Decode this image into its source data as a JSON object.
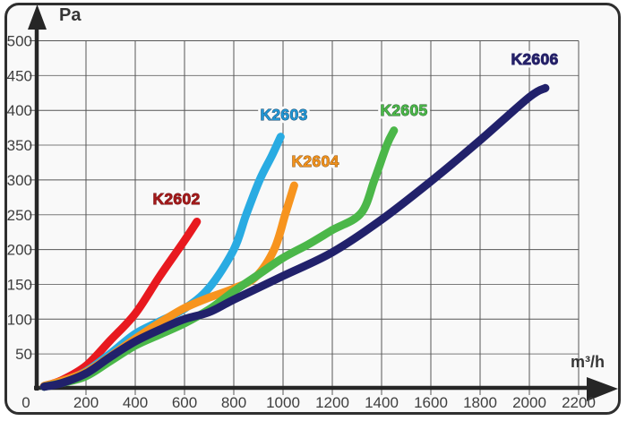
{
  "chart_data": {
    "type": "line",
    "xlabel": "m³/h",
    "ylabel": "Pa",
    "origin_label": "0",
    "x_ticks": [
      0,
      200,
      400,
      600,
      800,
      1000,
      1200,
      1400,
      1600,
      1800,
      2000,
      2200
    ],
    "y_ticks": [
      50,
      100,
      150,
      200,
      250,
      300,
      350,
      400,
      450,
      500
    ],
    "xlim": [
      0,
      2260
    ],
    "ylim": [
      0,
      510
    ],
    "grid": true,
    "legend_position": "inline-labels",
    "axis_color": "#262626",
    "grid_color_major": "#565656",
    "grid_color_minor": "#7a7a7a",
    "series": [
      {
        "name": "K2602",
        "color": "#e8191f",
        "label_fill": "#a31a1b",
        "label_stroke": "#701112",
        "points": [
          [
            30,
            4
          ],
          [
            100,
            12
          ],
          [
            200,
            33
          ],
          [
            300,
            70
          ],
          [
            400,
            108
          ],
          [
            500,
            162
          ],
          [
            600,
            213
          ],
          [
            650,
            240
          ]
        ]
      },
      {
        "name": "K2603",
        "color": "#29abe2",
        "label_fill": "#2196d4",
        "label_stroke": "#14476b",
        "points": [
          [
            30,
            3
          ],
          [
            100,
            10
          ],
          [
            200,
            25
          ],
          [
            300,
            51
          ],
          [
            400,
            79
          ],
          [
            500,
            97
          ],
          [
            600,
            115
          ],
          [
            700,
            145
          ],
          [
            800,
            200
          ],
          [
            850,
            250
          ],
          [
            905,
            300
          ],
          [
            955,
            335
          ],
          [
            990,
            362
          ]
        ]
      },
      {
        "name": "K2604",
        "color": "#f7941e",
        "label_fill": "#f0921e",
        "label_stroke": "#8a4d07",
        "points": [
          [
            30,
            4
          ],
          [
            100,
            11
          ],
          [
            200,
            24
          ],
          [
            300,
            47
          ],
          [
            400,
            72
          ],
          [
            500,
            95
          ],
          [
            600,
            116
          ],
          [
            700,
            131
          ],
          [
            800,
            144
          ],
          [
            890,
            161
          ],
          [
            965,
            201
          ],
          [
            1010,
            252
          ],
          [
            1045,
            292
          ]
        ]
      },
      {
        "name": "K2605",
        "color": "#4bb749",
        "label_fill": "#4bb749",
        "label_stroke": "#1c5a1f",
        "points": [
          [
            30,
            3
          ],
          [
            100,
            8
          ],
          [
            200,
            18
          ],
          [
            300,
            40
          ],
          [
            400,
            62
          ],
          [
            500,
            78
          ],
          [
            600,
            94
          ],
          [
            700,
            114
          ],
          [
            800,
            140
          ],
          [
            900,
            164
          ],
          [
            1000,
            188
          ],
          [
            1100,
            207
          ],
          [
            1200,
            228
          ],
          [
            1316,
            252
          ],
          [
            1371,
            300
          ],
          [
            1421,
            350
          ],
          [
            1450,
            371
          ]
        ]
      },
      {
        "name": "K2606",
        "color": "#21216b",
        "label_fill": "#252168",
        "label_stroke": "#252168",
        "points": [
          [
            30,
            3
          ],
          [
            100,
            8
          ],
          [
            200,
            22
          ],
          [
            300,
            46
          ],
          [
            400,
            68
          ],
          [
            500,
            85
          ],
          [
            600,
            100
          ],
          [
            700,
            110
          ],
          [
            800,
            128
          ],
          [
            1000,
            162
          ],
          [
            1200,
            196
          ],
          [
            1400,
            243
          ],
          [
            1600,
            298
          ],
          [
            1800,
            357
          ],
          [
            2000,
            419
          ],
          [
            2065,
            432
          ]
        ]
      }
    ]
  }
}
